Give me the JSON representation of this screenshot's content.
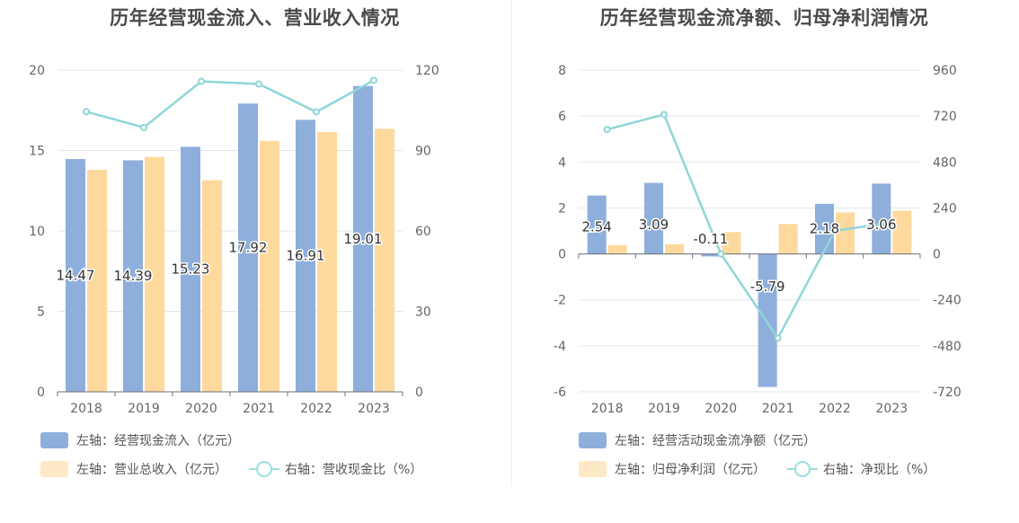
{
  "chart_data": [
    {
      "type": "bar+line",
      "title": "历年经营现金流入、营业收入情况",
      "categories": [
        "2018",
        "2019",
        "2020",
        "2021",
        "2022",
        "2023"
      ],
      "left_axis": {
        "ticks": [
          "0",
          "5",
          "10",
          "15",
          "20"
        ],
        "range": [
          0,
          20
        ]
      },
      "right_axis": {
        "ticks": [
          "0",
          "30",
          "60",
          "90",
          "120"
        ],
        "range": [
          0,
          120
        ]
      },
      "series": [
        {
          "name": "左轴：经营现金流入（亿元）",
          "type": "bar",
          "axis": "left",
          "color": "#8eaedc",
          "values": [
            14.47,
            14.39,
            15.23,
            17.92,
            16.91,
            19.01
          ],
          "labels": [
            "14.47",
            "14.39",
            "15.23",
            "17.92",
            "16.91",
            "19.01"
          ]
        },
        {
          "name": "左轴：营业总收入（亿元）",
          "type": "bar",
          "axis": "left",
          "color": "#fed99d",
          "values": [
            13.8,
            14.6,
            13.15,
            15.6,
            16.15,
            16.35
          ]
        },
        {
          "name": "右轴：营收现金比（%）",
          "type": "line",
          "axis": "right",
          "color": "#8fd6d8",
          "values": [
            104.5,
            98.6,
            115.8,
            114.8,
            104.4,
            116.2
          ]
        }
      ]
    },
    {
      "type": "bar+line",
      "title": "历年经营现金流净额、归母净利润情况",
      "categories": [
        "2018",
        "2019",
        "2020",
        "2021",
        "2022",
        "2023"
      ],
      "left_axis": {
        "ticks": [
          "-6",
          "-4",
          "-2",
          "0",
          "2",
          "4",
          "6",
          "8"
        ],
        "range": [
          -6,
          8
        ]
      },
      "right_axis": {
        "ticks": [
          "-720",
          "-480",
          "-240",
          "0",
          "240",
          "480",
          "720",
          "960"
        ],
        "range": [
          -720,
          960
        ]
      },
      "series": [
        {
          "name": "左轴：经营活动现金流净额（亿元）",
          "type": "bar",
          "axis": "left",
          "color": "#8eaedc",
          "values": [
            2.54,
            3.09,
            -0.11,
            -5.79,
            2.18,
            3.06
          ],
          "labels": [
            "2.54",
            "3.09",
            "-0.11",
            "-5.79",
            "2.18",
            "3.06"
          ]
        },
        {
          "name": "左轴：归母净利润（亿元）",
          "type": "bar",
          "axis": "left",
          "color": "#fed99d",
          "values": [
            0.38,
            0.42,
            0.95,
            1.3,
            1.8,
            1.88
          ]
        },
        {
          "name": "右轴：净现比（%）",
          "type": "line",
          "axis": "right",
          "color": "#8fd6d8",
          "values": [
            650,
            728,
            0,
            -440,
            120,
            165
          ]
        }
      ]
    }
  ]
}
